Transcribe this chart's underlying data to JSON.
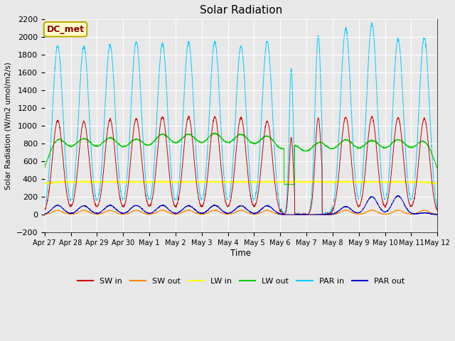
{
  "title": "Solar Radiation",
  "ylabel": "Solar Radiation (W/m2 umol/m2/s)",
  "xlabel": "Time",
  "ylim": [
    -200,
    2200
  ],
  "yticks": [
    -200,
    0,
    200,
    400,
    600,
    800,
    1000,
    1200,
    1400,
    1600,
    1800,
    2000,
    2200
  ],
  "annotation_text": "DC_met",
  "annotation_bg": "#ffffcc",
  "annotation_border": "#bbaa00",
  "annotation_text_color": "#880000",
  "fig_bg_color": "#e8e8e8",
  "plot_bg_color": "#e8e8e8",
  "series_colors": {
    "SW_in": "#cc0000",
    "SW_out": "#ff8800",
    "LW_in": "#ffff00",
    "LW_out": "#00cc00",
    "PAR_in": "#00ccff",
    "PAR_out": "#0000cc"
  },
  "legend_labels": [
    "SW in",
    "SW out",
    "LW in",
    "LW out",
    "PAR in",
    "PAR out"
  ],
  "x_tick_labels": [
    "Apr 27",
    "Apr 28",
    "Apr 29",
    "Apr 30",
    "May 1",
    "May 2",
    "May 3",
    "May 4",
    "May 5",
    "May 6",
    "May 7",
    "May 8",
    "May 9",
    "May 10",
    "May 11",
    "May 12"
  ]
}
